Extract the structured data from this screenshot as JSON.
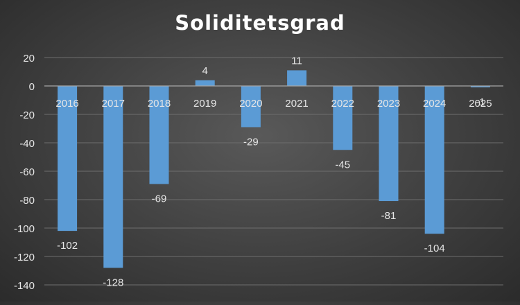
{
  "chart_data": {
    "type": "bar",
    "title": "Soliditetsgrad",
    "xlabel": "",
    "ylabel": "",
    "categories": [
      "2016",
      "2017",
      "2018",
      "2019",
      "2020",
      "2021",
      "2022",
      "2023",
      "2024",
      "2025"
    ],
    "values": [
      -102,
      -128,
      -69,
      4,
      -29,
      11,
      -45,
      -81,
      -104,
      -1
    ],
    "data_labels": [
      "-102",
      "-128",
      "-69",
      "4",
      "-29",
      "11",
      "-45",
      "-81",
      "-104",
      "-1"
    ],
    "ylim": [
      -140,
      20
    ],
    "yticks": [
      20,
      0,
      -20,
      -40,
      -60,
      -80,
      -100,
      -120,
      -140
    ],
    "grid": true,
    "legend": "none",
    "colors": {
      "bar": "#5b9bd5",
      "text": "#e6e6e6",
      "grid": "#6e6e6e",
      "axis": "#a6a6a6",
      "title": "#ffffff"
    }
  }
}
